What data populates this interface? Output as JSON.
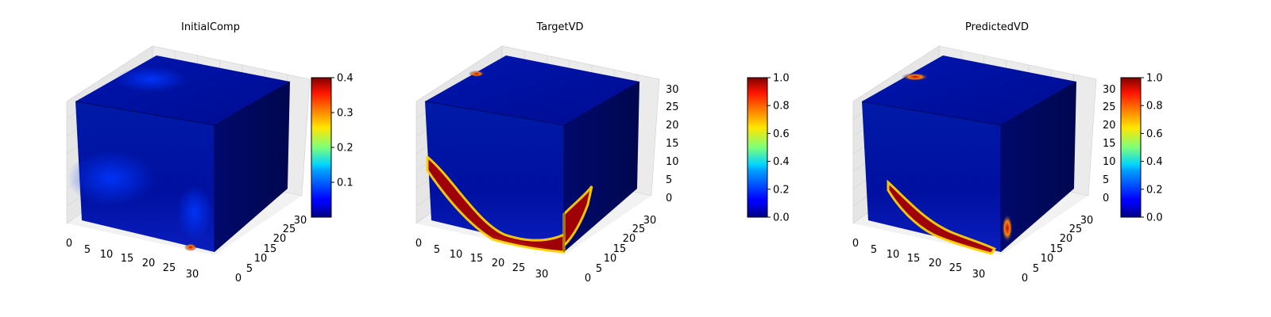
{
  "chart_data": [
    {
      "type": "heatmap",
      "title": "InitialComp",
      "x_ticks": [
        "0",
        "5",
        "10",
        "15",
        "20",
        "25",
        "30"
      ],
      "y_ticks": [
        "0",
        "5",
        "10",
        "15",
        "20",
        "25",
        "30"
      ],
      "z_ticks": [],
      "colormap": "jet",
      "colorbar": {
        "range": [
          0.0,
          0.4
        ],
        "ticks": [
          "0.1",
          "0.2",
          "0.3",
          "0.4"
        ]
      }
    },
    {
      "type": "heatmap",
      "title": "TargetVD",
      "x_ticks": [
        "0",
        "5",
        "10",
        "15",
        "20",
        "25",
        "30"
      ],
      "y_ticks": [
        "0",
        "5",
        "10",
        "15",
        "20",
        "25",
        "30"
      ],
      "z_ticks": [
        "0",
        "5",
        "10",
        "15",
        "20",
        "25",
        "30"
      ],
      "colormap": "jet",
      "colorbar": {
        "range": [
          0.0,
          1.0
        ],
        "ticks": [
          "0.0",
          "0.2",
          "0.4",
          "0.6",
          "0.8",
          "1.0"
        ]
      }
    },
    {
      "type": "heatmap",
      "title": "PredictedVD",
      "x_ticks": [
        "0",
        "5",
        "10",
        "15",
        "20",
        "25",
        "30"
      ],
      "y_ticks": [
        "0",
        "5",
        "10",
        "15",
        "20",
        "25",
        "30"
      ],
      "z_ticks": [
        "0",
        "5",
        "10",
        "15",
        "20",
        "25",
        "30"
      ],
      "colormap": "jet",
      "colorbar": {
        "range": [
          0.0,
          1.0
        ],
        "ticks": [
          "0.0",
          "0.2",
          "0.4",
          "0.6",
          "0.8",
          "1.0"
        ]
      }
    }
  ]
}
